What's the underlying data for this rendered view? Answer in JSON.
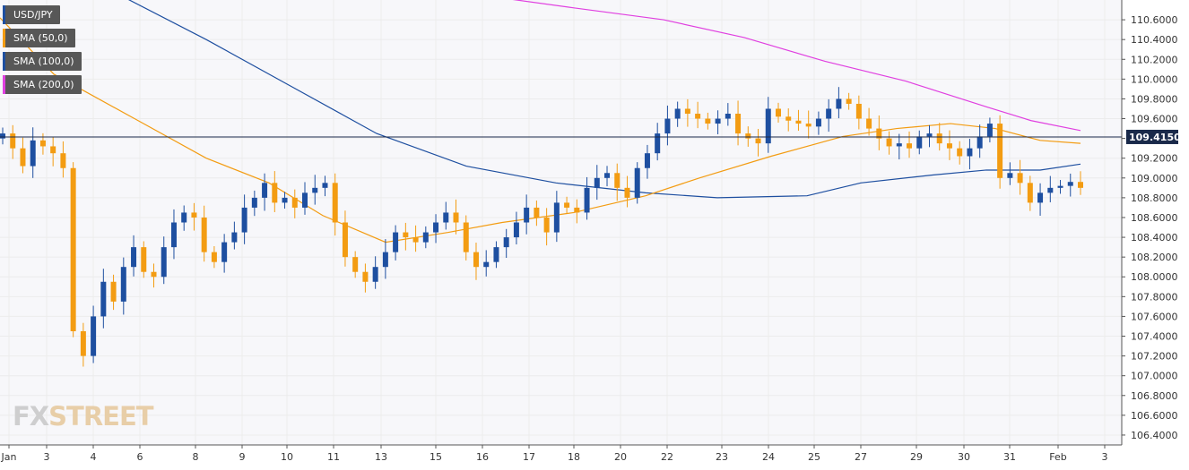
{
  "chart_data": {
    "type": "candlestick",
    "symbol": "USD/JPY",
    "last_price": "109.4150",
    "price_axis": {
      "min": 106.3,
      "max": 110.8,
      "ticks": [
        "106.4000",
        "106.6000",
        "106.8000",
        "107.0000",
        "107.2000",
        "107.4000",
        "107.6000",
        "107.8000",
        "108.0000",
        "108.2000",
        "108.4000",
        "108.6000",
        "108.8000",
        "109.0000",
        "109.2000",
        "109.4000",
        "109.6000",
        "109.8000",
        "110.0000",
        "110.2000",
        "110.4000",
        "110.6000"
      ]
    },
    "x_labels": [
      "Jan",
      "3",
      "4",
      "6",
      "8",
      "9",
      "10",
      "11",
      "13",
      "15",
      "16",
      "17",
      "18",
      "20",
      "22",
      "23",
      "24",
      "25",
      "27",
      "29",
      "30",
      "31",
      "Feb",
      "3"
    ],
    "legend": [
      {
        "label": "USD/JPY",
        "color": "#1e4fa0"
      },
      {
        "label": "SMA (50,0)",
        "color": "#f39c12"
      },
      {
        "label": "SMA (100,0)",
        "color": "#1e4fa0"
      },
      {
        "label": "SMA (200,0)",
        "color": "#e040e0"
      }
    ],
    "colors": {
      "up": "#1e4fa0",
      "down": "#f39c12",
      "sma50": "#f39c12",
      "sma100": "#1e4fa0",
      "sma200": "#e040e0",
      "grid": "#ececec",
      "last_line": "#1a2a4a",
      "axis_bg": "#ffffff",
      "plot_bg": "#f7f7fa"
    },
    "candles_close": [
      109.45,
      109.3,
      109.12,
      109.38,
      109.32,
      109.25,
      109.1,
      107.45,
      107.2,
      107.6,
      107.95,
      107.75,
      108.1,
      108.3,
      108.05,
      108.0,
      108.3,
      108.55,
      108.65,
      108.6,
      108.25,
      108.15,
      108.35,
      108.45,
      108.7,
      108.8,
      108.95,
      108.75,
      108.8,
      108.7,
      108.85,
      108.9,
      108.95,
      108.55,
      108.2,
      108.05,
      107.95,
      108.1,
      108.25,
      108.45,
      108.4,
      108.35,
      108.45,
      108.55,
      108.65,
      108.55,
      108.25,
      108.1,
      108.15,
      108.3,
      108.4,
      108.55,
      108.7,
      108.6,
      108.45,
      108.75,
      108.7,
      108.65,
      108.9,
      109.0,
      109.05,
      108.9,
      108.8,
      109.1,
      109.25,
      109.45,
      109.6,
      109.7,
      109.65,
      109.6,
      109.55,
      109.6,
      109.65,
      109.45,
      109.4,
      109.35,
      109.7,
      109.62,
      109.58,
      109.55,
      109.52,
      109.6,
      109.7,
      109.8,
      109.75,
      109.6,
      109.5,
      109.4,
      109.32,
      109.35,
      109.3,
      109.42,
      109.45,
      109.35,
      109.3,
      109.22,
      109.3,
      109.42,
      109.55,
      109.0,
      109.05,
      108.95,
      108.75,
      108.85,
      108.9,
      108.92,
      108.96,
      108.9
    ]
  }
}
